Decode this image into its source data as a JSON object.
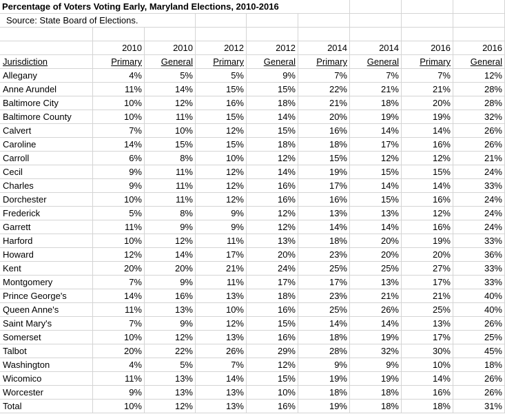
{
  "title": "Percentage of Voters Voting Early, Maryland Elections, 2010-2016",
  "source": "Source: State Board of Elections.",
  "header_years": [
    "2010",
    "2010",
    "2012",
    "2012",
    "2014",
    "2014",
    "2016",
    "2016"
  ],
  "header_types": [
    "Jurisdiction",
    "Primary",
    "General",
    "Primary",
    "General",
    "Primary",
    "General",
    "Primary",
    "General"
  ],
  "rows": [
    [
      "Allegany",
      "4%",
      "5%",
      "5%",
      "9%",
      "7%",
      "7%",
      "7%",
      "12%"
    ],
    [
      "Anne Arundel",
      "11%",
      "14%",
      "15%",
      "15%",
      "22%",
      "21%",
      "21%",
      "28%"
    ],
    [
      "Baltimore City",
      "10%",
      "12%",
      "16%",
      "18%",
      "21%",
      "18%",
      "20%",
      "28%"
    ],
    [
      "Baltimore County",
      "10%",
      "11%",
      "15%",
      "14%",
      "20%",
      "19%",
      "19%",
      "32%"
    ],
    [
      "Calvert",
      "7%",
      "10%",
      "12%",
      "15%",
      "16%",
      "14%",
      "14%",
      "26%"
    ],
    [
      "Caroline",
      "14%",
      "15%",
      "15%",
      "18%",
      "18%",
      "17%",
      "16%",
      "26%"
    ],
    [
      "Carroll",
      "6%",
      "8%",
      "10%",
      "12%",
      "15%",
      "12%",
      "12%",
      "21%"
    ],
    [
      "Cecil",
      "9%",
      "11%",
      "12%",
      "14%",
      "19%",
      "15%",
      "15%",
      "24%"
    ],
    [
      "Charles",
      "9%",
      "11%",
      "12%",
      "16%",
      "17%",
      "14%",
      "14%",
      "33%"
    ],
    [
      "Dorchester",
      "10%",
      "11%",
      "12%",
      "16%",
      "16%",
      "15%",
      "16%",
      "24%"
    ],
    [
      "Frederick",
      "5%",
      "8%",
      "9%",
      "12%",
      "13%",
      "13%",
      "12%",
      "24%"
    ],
    [
      "Garrett",
      "11%",
      "9%",
      "9%",
      "12%",
      "14%",
      "14%",
      "16%",
      "24%"
    ],
    [
      "Harford",
      "10%",
      "12%",
      "11%",
      "13%",
      "18%",
      "20%",
      "19%",
      "33%"
    ],
    [
      "Howard",
      "12%",
      "14%",
      "17%",
      "20%",
      "23%",
      "20%",
      "20%",
      "36%"
    ],
    [
      "Kent",
      "20%",
      "20%",
      "21%",
      "24%",
      "25%",
      "25%",
      "27%",
      "33%"
    ],
    [
      "Montgomery",
      "7%",
      "9%",
      "11%",
      "17%",
      "17%",
      "13%",
      "17%",
      "33%"
    ],
    [
      "Prince George's",
      "14%",
      "16%",
      "13%",
      "18%",
      "23%",
      "21%",
      "21%",
      "40%"
    ],
    [
      "Queen Anne's",
      "11%",
      "13%",
      "10%",
      "16%",
      "25%",
      "26%",
      "25%",
      "40%"
    ],
    [
      "Saint Mary's",
      "7%",
      "9%",
      "12%",
      "15%",
      "14%",
      "14%",
      "13%",
      "26%"
    ],
    [
      "Somerset",
      "10%",
      "12%",
      "13%",
      "16%",
      "18%",
      "19%",
      "17%",
      "25%"
    ],
    [
      "Talbot",
      "20%",
      "22%",
      "26%",
      "29%",
      "28%",
      "32%",
      "30%",
      "45%"
    ],
    [
      "Washington",
      "4%",
      "5%",
      "7%",
      "12%",
      "9%",
      "9%",
      "10%",
      "18%"
    ],
    [
      "Wicomico",
      "11%",
      "13%",
      "14%",
      "15%",
      "19%",
      "19%",
      "14%",
      "26%"
    ],
    [
      "Worcester",
      "9%",
      "13%",
      "13%",
      "10%",
      "18%",
      "18%",
      "16%",
      "26%"
    ],
    [
      "Total",
      "10%",
      "12%",
      "13%",
      "16%",
      "19%",
      "18%",
      "18%",
      "31%"
    ]
  ]
}
